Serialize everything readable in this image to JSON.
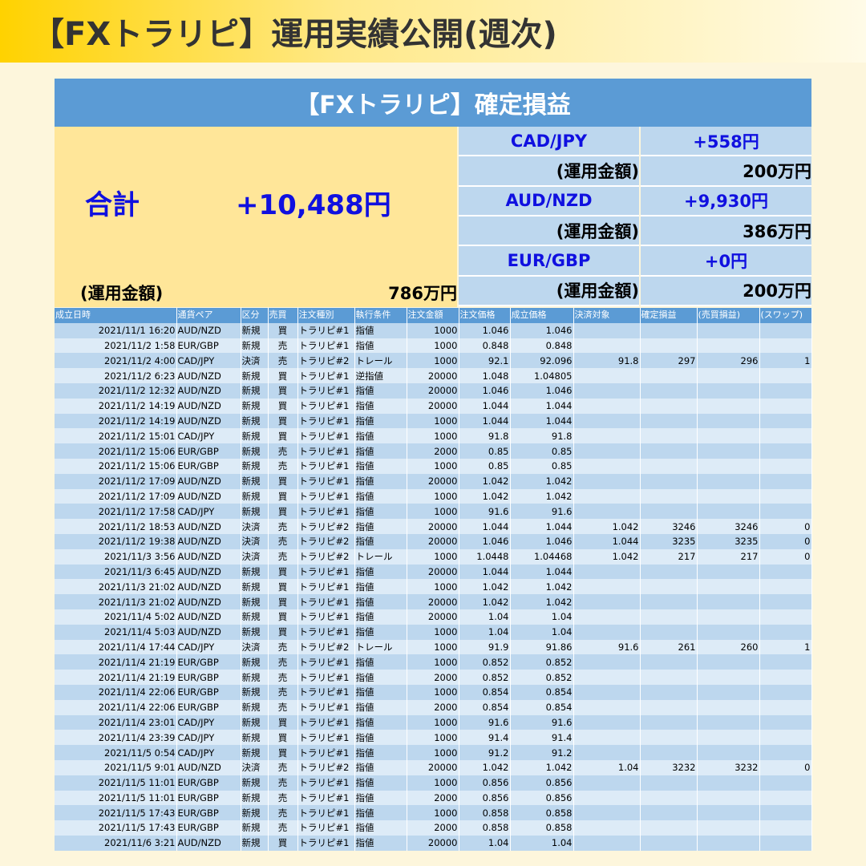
{
  "header": {
    "title": "【FXトラリピ】運用実績公開(週次)"
  },
  "summary": {
    "title": "【FXトラリピ】確定損益",
    "total_label": "合計",
    "total": "+10,488円",
    "capital_label": "(運用金額)",
    "capital": "786万円",
    "pairs": [
      {
        "name": "CAD/JPY",
        "profit": "+558円",
        "capital_label": "(運用金額)",
        "capital": "200万円"
      },
      {
        "name": "AUD/NZD",
        "profit": "+9,930円",
        "capital_label": "(運用金額)",
        "capital": "386万円"
      },
      {
        "name": "EUR/GBP",
        "profit": "+0円",
        "capital_label": "(運用金額)",
        "capital": "200万円"
      }
    ]
  },
  "table": {
    "columns": [
      "成立日時",
      "通貨ペア",
      "区分",
      "売買",
      "注文種別",
      "執行条件",
      "注文金額",
      "注文価格",
      "成立価格",
      "決済対象",
      "確定損益",
      "(売買損益)",
      "(スワップ)"
    ],
    "rows": [
      [
        "2021/11/1 16:20",
        "AUD/NZD",
        "新規",
        "買",
        "トラリピ#1",
        "指値",
        "1000",
        "1.046",
        "1.046"
      ],
      [
        "2021/11/2 1:58",
        "EUR/GBP",
        "新規",
        "売",
        "トラリピ#1",
        "指値",
        "1000",
        "0.848",
        "0.848"
      ],
      [
        "2021/11/2 4:00",
        "CAD/JPY",
        "決済",
        "売",
        "トラリピ#2",
        "トレール",
        "1000",
        "92.1",
        "92.096",
        "91.8",
        "297",
        "296",
        "1"
      ],
      [
        "2021/11/2 6:23",
        "AUD/NZD",
        "新規",
        "買",
        "トラリピ#1",
        "逆指値",
        "20000",
        "1.048",
        "1.04805"
      ],
      [
        "2021/11/2 12:32",
        "AUD/NZD",
        "新規",
        "買",
        "トラリピ#1",
        "指値",
        "20000",
        "1.046",
        "1.046"
      ],
      [
        "2021/11/2 14:19",
        "AUD/NZD",
        "新規",
        "買",
        "トラリピ#1",
        "指値",
        "20000",
        "1.044",
        "1.044"
      ],
      [
        "2021/11/2 14:19",
        "AUD/NZD",
        "新規",
        "買",
        "トラリピ#1",
        "指値",
        "1000",
        "1.044",
        "1.044"
      ],
      [
        "2021/11/2 15:01",
        "CAD/JPY",
        "新規",
        "買",
        "トラリピ#1",
        "指値",
        "1000",
        "91.8",
        "91.8"
      ],
      [
        "2021/11/2 15:06",
        "EUR/GBP",
        "新規",
        "売",
        "トラリピ#1",
        "指値",
        "2000",
        "0.85",
        "0.85"
      ],
      [
        "2021/11/2 15:06",
        "EUR/GBP",
        "新規",
        "売",
        "トラリピ#1",
        "指値",
        "1000",
        "0.85",
        "0.85"
      ],
      [
        "2021/11/2 17:09",
        "AUD/NZD",
        "新規",
        "買",
        "トラリピ#1",
        "指値",
        "20000",
        "1.042",
        "1.042"
      ],
      [
        "2021/11/2 17:09",
        "AUD/NZD",
        "新規",
        "買",
        "トラリピ#1",
        "指値",
        "1000",
        "1.042",
        "1.042"
      ],
      [
        "2021/11/2 17:58",
        "CAD/JPY",
        "新規",
        "買",
        "トラリピ#1",
        "指値",
        "1000",
        "91.6",
        "91.6"
      ],
      [
        "2021/11/2 18:53",
        "AUD/NZD",
        "決済",
        "売",
        "トラリピ#2",
        "指値",
        "20000",
        "1.044",
        "1.044",
        "1.042",
        "3246",
        "3246",
        "0"
      ],
      [
        "2021/11/2 19:38",
        "AUD/NZD",
        "決済",
        "売",
        "トラリピ#2",
        "指値",
        "20000",
        "1.046",
        "1.046",
        "1.044",
        "3235",
        "3235",
        "0"
      ],
      [
        "2021/11/3 3:56",
        "AUD/NZD",
        "決済",
        "売",
        "トラリピ#2",
        "トレール",
        "1000",
        "1.0448",
        "1.04468",
        "1.042",
        "217",
        "217",
        "0"
      ],
      [
        "2021/11/3 6:45",
        "AUD/NZD",
        "新規",
        "買",
        "トラリピ#1",
        "指値",
        "20000",
        "1.044",
        "1.044"
      ],
      [
        "2021/11/3 21:02",
        "AUD/NZD",
        "新規",
        "買",
        "トラリピ#1",
        "指値",
        "1000",
        "1.042",
        "1.042"
      ],
      [
        "2021/11/3 21:02",
        "AUD/NZD",
        "新規",
        "買",
        "トラリピ#1",
        "指値",
        "20000",
        "1.042",
        "1.042"
      ],
      [
        "2021/11/4 5:02",
        "AUD/NZD",
        "新規",
        "買",
        "トラリピ#1",
        "指値",
        "20000",
        "1.04",
        "1.04"
      ],
      [
        "2021/11/4 5:03",
        "AUD/NZD",
        "新規",
        "買",
        "トラリピ#1",
        "指値",
        "1000",
        "1.04",
        "1.04"
      ],
      [
        "2021/11/4 17:44",
        "CAD/JPY",
        "決済",
        "売",
        "トラリピ#2",
        "トレール",
        "1000",
        "91.9",
        "91.86",
        "91.6",
        "261",
        "260",
        "1"
      ],
      [
        "2021/11/4 21:19",
        "EUR/GBP",
        "新規",
        "売",
        "トラリピ#1",
        "指値",
        "1000",
        "0.852",
        "0.852"
      ],
      [
        "2021/11/4 21:19",
        "EUR/GBP",
        "新規",
        "売",
        "トラリピ#1",
        "指値",
        "2000",
        "0.852",
        "0.852"
      ],
      [
        "2021/11/4 22:06",
        "EUR/GBP",
        "新規",
        "売",
        "トラリピ#1",
        "指値",
        "1000",
        "0.854",
        "0.854"
      ],
      [
        "2021/11/4 22:06",
        "EUR/GBP",
        "新規",
        "売",
        "トラリピ#1",
        "指値",
        "2000",
        "0.854",
        "0.854"
      ],
      [
        "2021/11/4 23:01",
        "CAD/JPY",
        "新規",
        "買",
        "トラリピ#1",
        "指値",
        "1000",
        "91.6",
        "91.6"
      ],
      [
        "2021/11/4 23:39",
        "CAD/JPY",
        "新規",
        "買",
        "トラリピ#1",
        "指値",
        "1000",
        "91.4",
        "91.4"
      ],
      [
        "2021/11/5 0:54",
        "CAD/JPY",
        "新規",
        "買",
        "トラリピ#1",
        "指値",
        "1000",
        "91.2",
        "91.2"
      ],
      [
        "2021/11/5 9:01",
        "AUD/NZD",
        "決済",
        "売",
        "トラリピ#2",
        "指値",
        "20000",
        "1.042",
        "1.042",
        "1.04",
        "3232",
        "3232",
        "0"
      ],
      [
        "2021/11/5 11:01",
        "EUR/GBP",
        "新規",
        "売",
        "トラリピ#1",
        "指値",
        "1000",
        "0.856",
        "0.856"
      ],
      [
        "2021/11/5 11:01",
        "EUR/GBP",
        "新規",
        "売",
        "トラリピ#1",
        "指値",
        "2000",
        "0.856",
        "0.856"
      ],
      [
        "2021/11/5 17:43",
        "EUR/GBP",
        "新規",
        "売",
        "トラリピ#1",
        "指値",
        "1000",
        "0.858",
        "0.858"
      ],
      [
        "2021/11/5 17:43",
        "EUR/GBP",
        "新規",
        "売",
        "トラリピ#1",
        "指値",
        "2000",
        "0.858",
        "0.858"
      ],
      [
        "2021/11/6 3:21",
        "AUD/NZD",
        "新規",
        "買",
        "トラリピ#1",
        "指値",
        "20000",
        "1.04",
        "1.04"
      ]
    ]
  }
}
